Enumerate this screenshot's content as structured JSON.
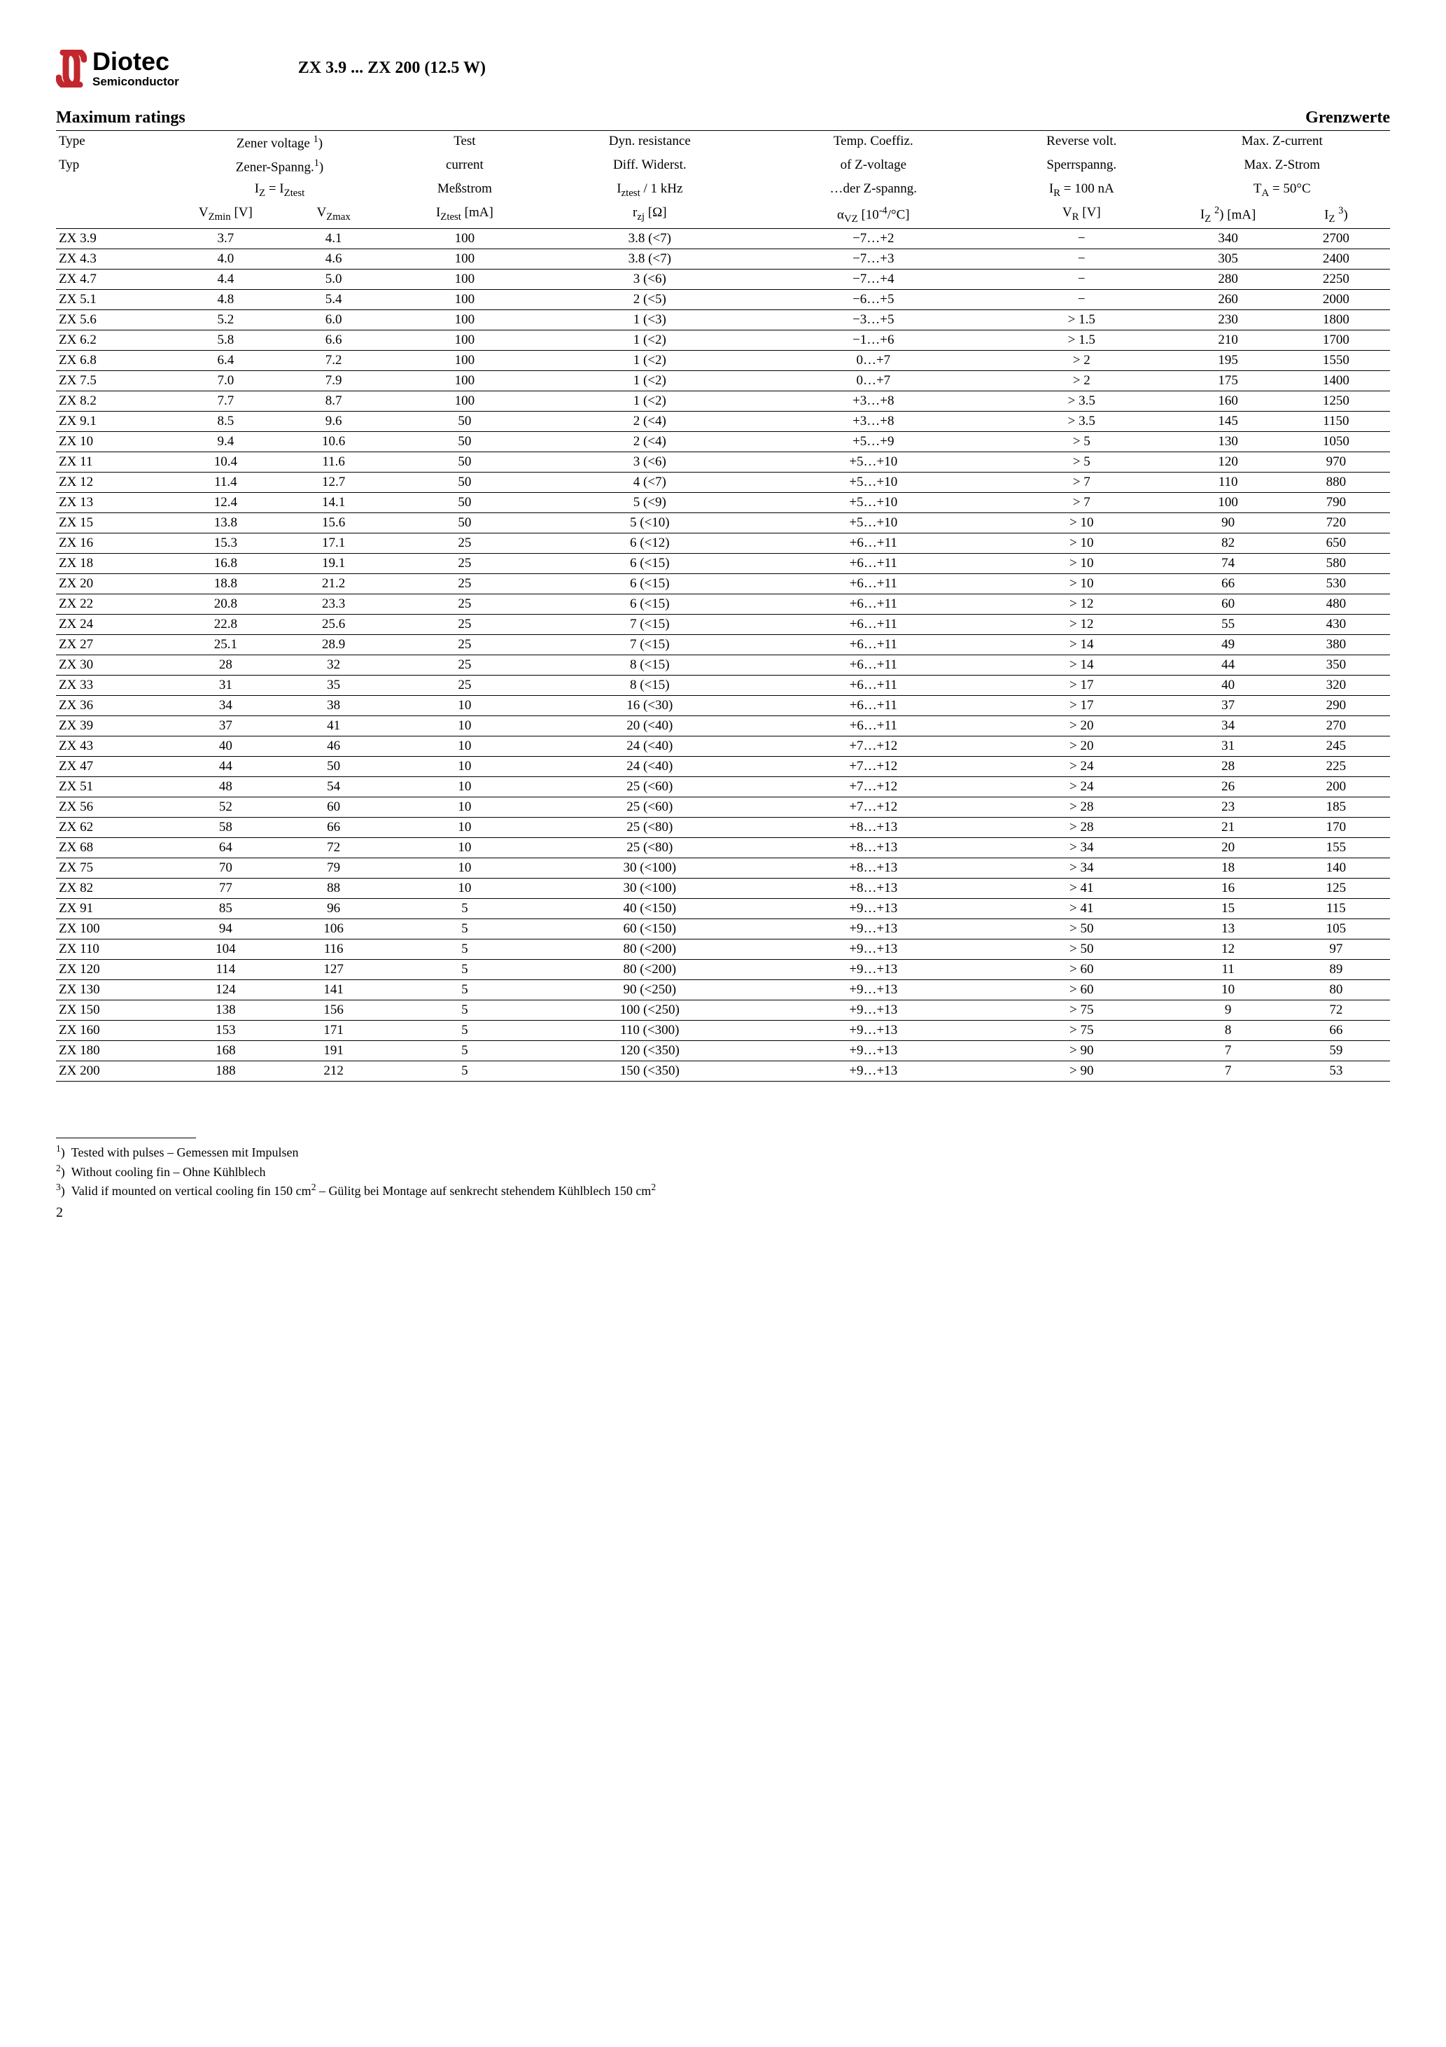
{
  "brand": {
    "name": "Diotec",
    "sub": "Semiconductor"
  },
  "doc_title": "ZX 3.9 ... ZX 200 (12.5 W)",
  "section_left": "Maximum ratings",
  "section_right": "Grenzwerte",
  "head": {
    "type1": "Type",
    "type2": "Typ",
    "zener_en": "Zener voltage <sup>1</sup>)",
    "zener_de": "Zener-Spanng.<sup>1</sup>)",
    "iz_eq": "I<sub>Z</sub> = I<sub>Ztest</sub>",
    "vzmin": "V<sub>Zmin</sub>",
    "unit_v": "[V]",
    "vzmax": "V<sub>Zmax</sub>",
    "test1": "Test",
    "test2": "current",
    "test3": "Meßstrom",
    "test4": "I<sub>Ztest</sub> [mA]",
    "dyn1": "Dyn. resistance",
    "dyn2": "Diff. Widerst.",
    "dyn3": "I<sub>ztest</sub> / 1 kHz",
    "dyn4": "r<sub>zj</sub> [Ω]",
    "tc1": "Temp. Coeffiz.",
    "tc2": "of Z-voltage",
    "tc3": "…der Z-spanng.",
    "tc4": "α<sub>VZ</sub> [10<sup>-4</sup>/°C]",
    "rv1": "Reverse volt.",
    "rv2": "Sperrspanng.",
    "rv3": "I<sub>R</sub> = 100 nA",
    "rv4": "V<sub>R</sub> [V]",
    "mz1": "Max. Z-current",
    "mz2": "Max. Z-Strom",
    "mz3": "T<sub>A</sub> = 50°C",
    "iz2": "I<sub>Z</sub> <sup>2</sup>)",
    "ma": "[mA]",
    "iz3": "I<sub>Z</sub> <sup>3</sup>)"
  },
  "rows": [
    [
      "ZX 3.9",
      "3.7",
      "4.1",
      "100",
      "3.8 (<7)",
      "−7…+2",
      "−",
      "340",
      "2700"
    ],
    [
      "ZX 4.3",
      "4.0",
      "4.6",
      "100",
      "3.8 (<7)",
      "−7…+3",
      "−",
      "305",
      "2400"
    ],
    [
      "ZX 4.7",
      "4.4",
      "5.0",
      "100",
      "3 (<6)",
      "−7…+4",
      "−",
      "280",
      "2250"
    ],
    [
      "ZX 5.1",
      "4.8",
      "5.4",
      "100",
      "2 (<5)",
      "−6…+5",
      "−",
      "260",
      "2000"
    ],
    [
      "ZX 5.6",
      "5.2",
      "6.0",
      "100",
      "1 (<3)",
      "−3…+5",
      "> 1.5",
      "230",
      "1800"
    ],
    [
      "ZX 6.2",
      "5.8",
      "6.6",
      "100",
      "1 (<2)",
      "−1…+6",
      "> 1.5",
      "210",
      "1700"
    ],
    [
      "ZX 6.8",
      "6.4",
      "7.2",
      "100",
      "1 (<2)",
      "0…+7",
      "> 2",
      "195",
      "1550"
    ],
    [
      "ZX 7.5",
      "7.0",
      "7.9",
      "100",
      "1 (<2)",
      "0…+7",
      "> 2",
      "175",
      "1400"
    ],
    [
      "ZX 8.2",
      "7.7",
      "8.7",
      "100",
      "1 (<2)",
      "+3…+8",
      "> 3.5",
      "160",
      "1250"
    ],
    [
      "ZX 9.1",
      "8.5",
      "9.6",
      "50",
      "2 (<4)",
      "+3…+8",
      "> 3.5",
      "145",
      "1150"
    ],
    [
      "ZX 10",
      "9.4",
      "10.6",
      "50",
      "2 (<4)",
      "+5…+9",
      "> 5",
      "130",
      "1050"
    ],
    [
      "ZX 11",
      "10.4",
      "11.6",
      "50",
      "3 (<6)",
      "+5…+10",
      "> 5",
      "120",
      "970"
    ],
    [
      "ZX 12",
      "11.4",
      "12.7",
      "50",
      "4 (<7)",
      "+5…+10",
      "> 7",
      "110",
      "880"
    ],
    [
      "ZX 13",
      "12.4",
      "14.1",
      "50",
      "5 (<9)",
      "+5…+10",
      "> 7",
      "100",
      "790"
    ],
    [
      "ZX 15",
      "13.8",
      "15.6",
      "50",
      "5 (<10)",
      "+5…+10",
      "> 10",
      "90",
      "720"
    ],
    [
      "ZX 16",
      "15.3",
      "17.1",
      "25",
      "6 (<12)",
      "+6…+11",
      "> 10",
      "82",
      "650"
    ],
    [
      "ZX 18",
      "16.8",
      "19.1",
      "25",
      "6 (<15)",
      "+6…+11",
      "> 10",
      "74",
      "580"
    ],
    [
      "ZX 20",
      "18.8",
      "21.2",
      "25",
      "6 (<15)",
      "+6…+11",
      "> 10",
      "66",
      "530"
    ],
    [
      "ZX 22",
      "20.8",
      "23.3",
      "25",
      "6 (<15)",
      "+6…+11",
      "> 12",
      "60",
      "480"
    ],
    [
      "ZX 24",
      "22.8",
      "25.6",
      "25",
      "7 (<15)",
      "+6…+11",
      "> 12",
      "55",
      "430"
    ],
    [
      "ZX 27",
      "25.1",
      "28.9",
      "25",
      "7 (<15)",
      "+6…+11",
      "> 14",
      "49",
      "380"
    ],
    [
      "ZX 30",
      "28",
      "32",
      "25",
      "8 (<15)",
      "+6…+11",
      "> 14",
      "44",
      "350"
    ],
    [
      "ZX 33",
      "31",
      "35",
      "25",
      "8 (<15)",
      "+6…+11",
      "> 17",
      "40",
      "320"
    ],
    [
      "ZX 36",
      "34",
      "38",
      "10",
      "16 (<30)",
      "+6…+11",
      "> 17",
      "37",
      "290"
    ],
    [
      "ZX 39",
      "37",
      "41",
      "10",
      "20 (<40)",
      "+6…+11",
      "> 20",
      "34",
      "270"
    ],
    [
      "ZX 43",
      "40",
      "46",
      "10",
      "24 (<40)",
      "+7…+12",
      "> 20",
      "31",
      "245"
    ],
    [
      "ZX 47",
      "44",
      "50",
      "10",
      "24 (<40)",
      "+7…+12",
      "> 24",
      "28",
      "225"
    ],
    [
      "ZX 51",
      "48",
      "54",
      "10",
      "25 (<60)",
      "+7…+12",
      "> 24",
      "26",
      "200"
    ],
    [
      "ZX 56",
      "52",
      "60",
      "10",
      "25 (<60)",
      "+7…+12",
      "> 28",
      "23",
      "185"
    ],
    [
      "ZX 62",
      "58",
      "66",
      "10",
      "25 (<80)",
      "+8…+13",
      "> 28",
      "21",
      "170"
    ],
    [
      "ZX 68",
      "64",
      "72",
      "10",
      "25 (<80)",
      "+8…+13",
      "> 34",
      "20",
      "155"
    ],
    [
      "ZX 75",
      "70",
      "79",
      "10",
      "30 (<100)",
      "+8…+13",
      "> 34",
      "18",
      "140"
    ],
    [
      "ZX 82",
      "77",
      "88",
      "10",
      "30 (<100)",
      "+8…+13",
      "> 41",
      "16",
      "125"
    ],
    [
      "ZX 91",
      "85",
      "96",
      "5",
      "40 (<150)",
      "+9…+13",
      "> 41",
      "15",
      "115"
    ],
    [
      "ZX 100",
      "94",
      "106",
      "5",
      "60 (<150)",
      "+9…+13",
      "> 50",
      "13",
      "105"
    ],
    [
      "ZX 110",
      "104",
      "116",
      "5",
      "80 (<200)",
      "+9…+13",
      "> 50",
      "12",
      "97"
    ],
    [
      "ZX 120",
      "114",
      "127",
      "5",
      "80 (<200)",
      "+9…+13",
      "> 60",
      "11",
      "89"
    ],
    [
      "ZX 130",
      "124",
      "141",
      "5",
      "90 (<250)",
      "+9…+13",
      "> 60",
      "10",
      "80"
    ],
    [
      "ZX 150",
      "138",
      "156",
      "5",
      "100 (<250)",
      "+9…+13",
      "> 75",
      "9",
      "72"
    ],
    [
      "ZX 160",
      "153",
      "171",
      "5",
      "110 (<300)",
      "+9…+13",
      "> 75",
      "8",
      "66"
    ],
    [
      "ZX 180",
      "168",
      "191",
      "5",
      "120 (<350)",
      "+9…+13",
      "> 90",
      "7",
      "59"
    ],
    [
      "ZX 200",
      "188",
      "212",
      "5",
      "150 (<350)",
      "+9…+13",
      "> 90",
      "7",
      "53"
    ]
  ],
  "footnotes": {
    "f1": "Tested with pulses – Gemessen mit Impulsen",
    "f2": "Without cooling fin – Ohne Kühlblech",
    "f3": "Valid if mounted on vertical cooling fin 150 cm<sup>2</sup> – Gülitg bei Montage auf  senkrecht stehendem Kühlblech 150 cm<sup>2</sup>"
  },
  "page_number": "2"
}
